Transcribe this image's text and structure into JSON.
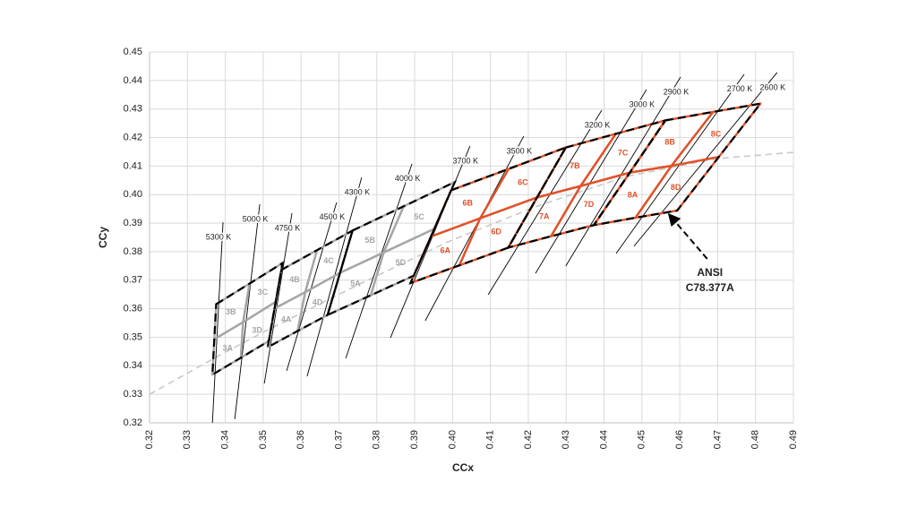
{
  "chart_data": {
    "type": "chromaticity",
    "xlabel": "CCx",
    "ylabel": "CCy",
    "xlim": [
      0.32,
      0.49
    ],
    "ylim": [
      0.32,
      0.45
    ],
    "xticks": [
      0.32,
      0.33,
      0.34,
      0.35,
      0.36,
      0.37,
      0.38,
      0.39,
      {
        "value": 0.4,
        "label": "0.40"
      },
      0.41,
      0.42,
      0.43,
      0.44,
      0.45,
      0.46,
      0.47,
      0.48,
      0.49
    ],
    "yticks": [
      0.32,
      0.33,
      0.34,
      0.35,
      0.36,
      0.37,
      0.38,
      0.39,
      {
        "value": 0.4,
        "label": "0.40"
      },
      0.41,
      0.42,
      0.43,
      0.44,
      0.45
    ],
    "grid": true,
    "locus": {
      "color": "#c8c8c8",
      "x": [
        0.32,
        0.3396,
        0.3514,
        0.3751,
        0.3987,
        0.4224,
        0.446,
        0.4696,
        0.49
      ],
      "y": [
        0.33,
        0.3445,
        0.3527,
        0.3684,
        0.3834,
        0.396,
        0.4064,
        0.4126,
        0.4148
      ]
    },
    "isotherms": [
      {
        "name": "5300 K",
        "color": "#000000",
        "x": [
          0.3366,
          0.3394
        ],
        "y": [
          0.32,
          0.3903
        ]
      },
      {
        "name": "5000 K",
        "color": "#000000",
        "x": [
          0.3425,
          0.3491
        ],
        "y": [
          0.3213,
          0.3966
        ]
      },
      {
        "name": "4750 K",
        "color": "#000000",
        "x": [
          0.3503,
          0.3576
        ],
        "y": [
          0.3338,
          0.3935
        ]
      },
      {
        "name": "4500 K",
        "color": "#000000",
        "x": [
          0.3562,
          0.3694
        ],
        "y": [
          0.3382,
          0.3973
        ]
      },
      {
        "name": "4300 K",
        "color": "#000000",
        "x": [
          0.3616,
          0.376
        ],
        "y": [
          0.3363,
          0.406
        ]
      },
      {
        "name": "4000 K",
        "color": "#000000",
        "x": [
          0.3718,
          0.3893
        ],
        "y": [
          0.3426,
          0.4108
        ]
      },
      {
        "name": "3700 K",
        "color": "#000000",
        "x": [
          0.3836,
          0.4046
        ],
        "y": [
          0.3498,
          0.417
        ]
      },
      {
        "name": "3500 K",
        "color": "#000000",
        "x": [
          0.3928,
          0.4188
        ],
        "y": [
          0.3558,
          0.4205
        ]
      },
      {
        "name": "3200 K",
        "color": "#000000",
        "x": [
          0.4094,
          0.4394
        ],
        "y": [
          0.3649,
          0.4296
        ]
      },
      {
        "name": "3000 K",
        "color": "#000000",
        "x": [
          0.4219,
          0.4512
        ],
        "y": [
          0.3724,
          0.4368
        ]
      },
      {
        "name": "2900 K",
        "color": "#000000",
        "x": [
          0.4299,
          0.4602
        ],
        "y": [
          0.375,
          0.4412
        ]
      },
      {
        "name": "2700 K",
        "color": "#000000",
        "x": [
          0.4432,
          0.477
        ],
        "y": [
          0.3794,
          0.4422
        ]
      },
      {
        "name": "2600 K",
        "color": "#000000",
        "x": [
          0.4479,
          0.4857
        ],
        "y": [
          0.3819,
          0.4428
        ]
      }
    ],
    "quadrangles": [
      {
        "color": "#a6a6a6",
        "bins": [
          "3A",
          "3B",
          "3C",
          "3D"
        ],
        "center": [
          0.3447,
          0.3553
        ],
        "x": [
          0.3376,
          0.3464,
          0.3551,
          0.3533,
          0.3515,
          0.3441,
          0.3366,
          0.3371
        ],
        "y": [
          0.3616,
          0.3688,
          0.376,
          0.3624,
          0.3487,
          0.3428,
          0.3369,
          0.3493
        ]
      },
      {
        "color": "#a6a6a6",
        "bins": [
          "4A",
          "4B",
          "4C",
          "4D"
        ],
        "center": [
          0.3611,
          0.3658
        ],
        "x": [
          0.3548,
          0.3642,
          0.3736,
          0.3703,
          0.367,
          0.3591,
          0.3512,
          0.353
        ],
        "y": [
          0.3736,
          0.3805,
          0.3874,
          0.3726,
          0.3578,
          0.3522,
          0.3465,
          0.3601
        ]
      },
      {
        "color": "#a6a6a6",
        "bins": [
          "5A",
          "5B",
          "5C",
          "5D"
        ],
        "center": [
          0.3818,
          0.3797
        ],
        "x": [
          0.3736,
          0.3871,
          0.4006,
          0.3952,
          0.3898,
          0.3784,
          0.367,
          0.3703
        ],
        "y": [
          0.3874,
          0.3959,
          0.4044,
          0.388,
          0.3716,
          0.3647,
          0.3578,
          0.3726
        ]
      },
      {
        "color": "#e0522a",
        "bins": [
          "6A",
          "6B",
          "6C",
          "6D"
        ],
        "center": [
          0.4073,
          0.3917
        ],
        "x": [
          0.3996,
          0.4148,
          0.4299,
          0.4223,
          0.4147,
          0.4018,
          0.3889,
          0.3943
        ],
        "y": [
          0.4015,
          0.409,
          0.4165,
          0.399,
          0.3814,
          0.3752,
          0.369,
          0.3853
        ]
      },
      {
        "color": "#e0522a",
        "bins": [
          "7A",
          "7B",
          "7C",
          "7D"
        ],
        "center": [
          0.4338,
          0.403
        ],
        "x": [
          0.4299,
          0.4431,
          0.4562,
          0.4468,
          0.4373,
          0.426,
          0.4147,
          0.4223
        ],
        "y": [
          0.4165,
          0.4213,
          0.426,
          0.4077,
          0.3893,
          0.3854,
          0.3814,
          0.399
        ]
      },
      {
        "color": "#e0522a",
        "bins": [
          "8A",
          "8B",
          "8C",
          "8D"
        ],
        "center": [
          0.4578,
          0.4101
        ],
        "x": [
          0.4562,
          0.4688,
          0.4813,
          0.4703,
          0.4593,
          0.4483,
          0.4373,
          0.4468
        ],
        "y": [
          0.426,
          0.429,
          0.4319,
          0.4132,
          0.3944,
          0.3919,
          0.3893,
          0.4077
        ]
      }
    ],
    "annotation": {
      "text": [
        "ANSI",
        "C78.377A"
      ],
      "x": 0.4566,
      "y": 0.3938
    }
  }
}
